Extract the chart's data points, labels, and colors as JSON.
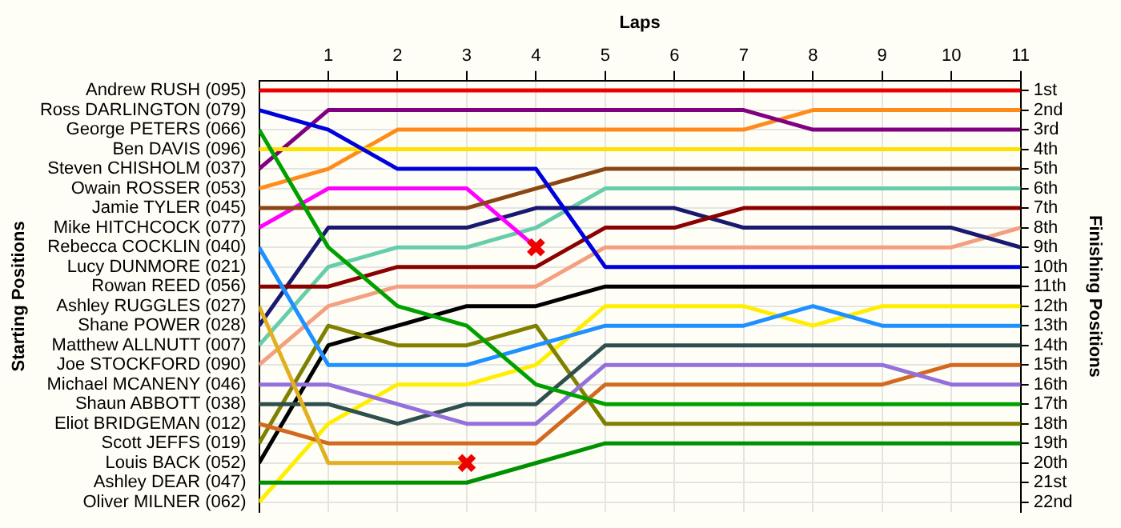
{
  "chart_data": {
    "type": "line",
    "xlabel": "Laps",
    "annotations": [
      "Starting Positions"
    ],
    "y2label": "Finishing Positions",
    "x": [
      0,
      1,
      2,
      3,
      4,
      5,
      6,
      7,
      8,
      9,
      10,
      11
    ],
    "xlim": [
      0,
      11
    ],
    "xticks": [
      1,
      2,
      3,
      4,
      5,
      6,
      7,
      8,
      9,
      10,
      11
    ],
    "y_categories": [
      "Andrew RUSH (095)",
      "Ross DARLINGTON (079)",
      "George PETERS (066)",
      "Ben DAVIS (096)",
      "Steven CHISHOLM (037)",
      "Owain ROSSER (053)",
      "Jamie TYLER (045)",
      "Mike HITCHCOCK (077)",
      "Rebecca COCKLIN (040)",
      "Lucy DUNMORE (021)",
      "Rowan REED (056)",
      "Ashley RUGGLES (027)",
      "Shane POWER (028)",
      "Matthew ALLNUTT (007)",
      "Joe STOCKFORD (090)",
      "Michael MCANENY (046)",
      "Shaun ABBOTT (038)",
      "Eliot BRIDGEMAN (012)",
      "Scott JEFFS (019)",
      "Louis BACK (052)",
      "Ashley DEAR (047)",
      "Oliver MILNER (062)"
    ],
    "y2lim": [
      22.5,
      0.5
    ],
    "y2ticks": [
      {
        "value": 1,
        "label": "1st"
      },
      {
        "value": 2,
        "label": "2nd"
      },
      {
        "value": 3,
        "label": "3rd"
      },
      {
        "value": 4,
        "label": "4th"
      },
      {
        "value": 5,
        "label": "5th"
      },
      {
        "value": 6,
        "label": "6th"
      },
      {
        "value": 7,
        "label": "7th"
      },
      {
        "value": 8,
        "label": "8th"
      },
      {
        "value": 9,
        "label": "9th"
      },
      {
        "value": 10,
        "label": "10th"
      },
      {
        "value": 11,
        "label": "11th"
      },
      {
        "value": 12,
        "label": "12th"
      },
      {
        "value": 13,
        "label": "13th"
      },
      {
        "value": 14,
        "label": "14th"
      },
      {
        "value": 15,
        "label": "15th"
      },
      {
        "value": 16,
        "label": "16th"
      },
      {
        "value": 17,
        "label": "17th"
      },
      {
        "value": 18,
        "label": "18th"
      },
      {
        "value": 19,
        "label": "19th"
      },
      {
        "value": 20,
        "label": "20th"
      },
      {
        "value": 21,
        "label": "21st"
      },
      {
        "value": 22,
        "label": "22nd"
      }
    ],
    "grid": true,
    "legend": false,
    "marker": "none",
    "line_style": "solid",
    "series": [
      {
        "axis": "y2",
        "color": "#ee0000",
        "values": [
          1,
          1,
          1,
          1,
          1,
          1,
          1,
          1,
          1,
          1,
          1,
          1
        ]
      },
      {
        "axis": "y2",
        "color": "#0000dd",
        "values": [
          2,
          3,
          5,
          5,
          5,
          10,
          10,
          10,
          10,
          10,
          10,
          10
        ]
      },
      {
        "axis": "y2",
        "color": "#00a000",
        "values": [
          3,
          9,
          12,
          13,
          16,
          17,
          17,
          17,
          17,
          17,
          17,
          17
        ]
      },
      {
        "axis": "y2",
        "color": "#ffe000",
        "values": [
          4,
          4,
          4,
          4,
          4,
          4,
          4,
          4,
          4,
          4,
          4,
          4
        ]
      },
      {
        "axis": "y2",
        "color": "#800080",
        "values": [
          5,
          2,
          2,
          2,
          2,
          2,
          2,
          2,
          3,
          3,
          3,
          3
        ]
      },
      {
        "axis": "y2",
        "color": "#ff8c1a",
        "values": [
          6,
          5,
          3,
          3,
          3,
          3,
          3,
          3,
          2,
          2,
          2,
          2
        ]
      },
      {
        "axis": "y2",
        "color": "#8b4513",
        "values": [
          7,
          7,
          7,
          7,
          6,
          5,
          5,
          5,
          5,
          5,
          5,
          5
        ]
      },
      {
        "axis": "y2",
        "color": "#ff00ff",
        "values": [
          8,
          6,
          6,
          6,
          9,
          null,
          null,
          null,
          null,
          null,
          null,
          null
        ]
      },
      {
        "axis": "y2",
        "color": "#1e90ff",
        "values": [
          9,
          15,
          15,
          15,
          14,
          13,
          13,
          13,
          12,
          13,
          13,
          13
        ]
      },
      {
        "axis": "y2",
        "color": "#8b0000",
        "values": [
          11,
          11,
          10,
          10,
          10,
          8,
          8,
          7,
          7,
          7,
          7,
          7
        ]
      },
      {
        "axis": "y2",
        "color": "#e0b020",
        "values": [
          12,
          20,
          20,
          20,
          null,
          null,
          null,
          null,
          null,
          null,
          null,
          null
        ]
      },
      {
        "axis": "y2",
        "color": "#191970",
        "values": [
          13,
          8,
          8,
          8,
          7,
          7,
          7,
          8,
          8,
          8,
          8,
          9
        ]
      },
      {
        "axis": "y2",
        "color": "#66cdaa",
        "values": [
          14,
          10,
          9,
          9,
          8,
          6,
          6,
          6,
          6,
          6,
          6,
          6
        ]
      },
      {
        "axis": "y2",
        "color": "#f4a080",
        "values": [
          15,
          12,
          11,
          11,
          11,
          9,
          9,
          9,
          9,
          9,
          9,
          8
        ]
      },
      {
        "axis": "y2",
        "color": "#9370db",
        "values": [
          16,
          16,
          17,
          18,
          18,
          15,
          15,
          15,
          15,
          15,
          16,
          16
        ]
      },
      {
        "axis": "y2",
        "color": "#2f4f4f",
        "values": [
          17,
          17,
          18,
          17,
          17,
          14,
          14,
          14,
          14,
          14,
          14,
          14
        ]
      },
      {
        "axis": "y2",
        "color": "#d2691e",
        "values": [
          18,
          19,
          19,
          19,
          19,
          16,
          16,
          16,
          16,
          16,
          15,
          15
        ]
      },
      {
        "axis": "y2",
        "color": "#808000",
        "values": [
          19,
          13,
          14,
          14,
          13,
          18,
          18,
          18,
          18,
          18,
          18,
          18
        ]
      },
      {
        "axis": "y2",
        "color": "#000000",
        "values": [
          20,
          14,
          13,
          12,
          12,
          11,
          11,
          11,
          11,
          11,
          11,
          11
        ]
      },
      {
        "axis": "y2",
        "color": "#009000",
        "values": [
          21,
          21,
          21,
          21,
          20,
          19,
          19,
          19,
          19,
          19,
          19,
          19
        ]
      },
      {
        "axis": "y2",
        "color": "#ffee00",
        "values": [
          22,
          18,
          16,
          16,
          15,
          12,
          12,
          12,
          13,
          12,
          12,
          12
        ]
      },
      {
        "axis": "y2",
        "type": "scatter",
        "marker": "cross",
        "color": "#ee0000",
        "x": [
          4,
          3
        ],
        "values": [
          9,
          20
        ]
      }
    ]
  }
}
